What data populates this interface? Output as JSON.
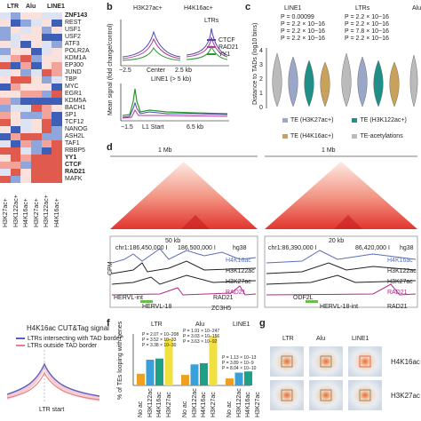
{
  "panel_labels": {
    "b": "b",
    "c": "c",
    "d": "d",
    "f": "f",
    "g": "g"
  },
  "heatmap": {
    "top_labels": [
      "LTR",
      "Alu",
      "LINE1"
    ],
    "genes": [
      "ZNF143",
      "REST",
      "USF1",
      "USF2",
      "ATF3",
      "POLR2A",
      "KDM1A",
      "EP300",
      "JUND",
      "TBP",
      "MYC",
      "EGR1",
      "KDM5A",
      "BACH1",
      "SP1",
      "TCF12",
      "NANOG",
      "ASH2L",
      "TAF1",
      "RBBP5",
      "YY1",
      "CTCF",
      "RAD21",
      "MAFK"
    ],
    "bold_genes": [
      "ZNF143",
      "YY1",
      "CTCF",
      "RAD21"
    ],
    "col_labels": [
      "H3K27ac+",
      "H3K122ac+",
      "H4K16ac+",
      "H3K27ac+",
      "H3K122ac+",
      "H4K16ac+"
    ]
  },
  "panel_b": {
    "title_left": "H3K27ac+",
    "title_right": "H4K16ac+",
    "ltr_label": "LTRs",
    "line1_label": "LINE1 (> 5 kb)",
    "ylabel": "Mean signal (fold change/control)",
    "x_top": [
      "−2.5",
      "Center",
      "2.5 kb"
    ],
    "x_bottom": [
      "−1.5",
      "L1 Start",
      "6.5 kb"
    ],
    "legend": [
      {
        "name": "CTCF",
        "color": "#4f47b5"
      },
      {
        "name": "RAD21",
        "color": "#b23a9a"
      },
      {
        "name": "YY1",
        "color": "#2a9a2a"
      }
    ]
  },
  "panel_c": {
    "groups": [
      "LINE1",
      "LTRs",
      "Alu"
    ],
    "ylabel": "Distance to TADs (log10 bins)",
    "ticks": [
      "0",
      "1",
      "2",
      "3",
      "4"
    ],
    "pvals_line1": [
      "P = 0.00099",
      "P = 2.2 × 10−16",
      "P = 2.2 × 10−16",
      "P = 2.2 × 10−16"
    ],
    "pvals_ltr": [
      "P = 2.2 × 10−16",
      "P = 2.2 × 10−16",
      "P = 7.8 × 10−16",
      "P = 2.2 × 10−16"
    ],
    "stars": "****",
    "legend": [
      {
        "name": "TE (H3K27ac+)",
        "color": "#9aa7c9"
      },
      {
        "name": "TE (H3K122ac+)",
        "color": "#1f8f87"
      },
      {
        "name": "TE (H4K16ac+)",
        "color": "#c9a15a"
      },
      {
        "name": "TE-acetylations",
        "color": "#bbbbbb"
      }
    ],
    "legend_note": "**** < 2.2 × 10"
  },
  "panel_d": {
    "scale_left": "1 Mb",
    "scale_right": "1 Mb",
    "zoom_left": "50 kb",
    "zoom_right": "20 kb",
    "coords_left": [
      "chr1:186,450,000 I",
      "I",
      "186,500,000 I"
    ],
    "coords_right": [
      "chr1:86,390,000 I",
      "86,420,000 I"
    ],
    "genome": "hg38",
    "tracks": [
      "H4K16ac",
      "H3K122ac",
      "H3K27ac",
      "RAD21"
    ],
    "track_colors": [
      "#5b6fb5",
      "#222222",
      "#222222",
      "#b1278d"
    ],
    "cpm": "CPM",
    "genes_left": [
      "HERVL-int",
      "HERVL-18",
      "RAD21",
      "ZC3H5"
    ],
    "genes_right": [
      "HERVL-18-int",
      "ODF2L",
      "RAD21"
    ]
  },
  "panel_e": {
    "title": "H4K16ac CUT&Tag signal",
    "legend": [
      {
        "name": "LTRs intersecting with TAD border",
        "color": "#5560c8"
      },
      {
        "name": "LTRs outside TAD border",
        "color": "#e6808a"
      }
    ],
    "xlabel": "LTR start"
  },
  "panel_f": {
    "groups": [
      "LTR",
      "Alu",
      "LINE1"
    ],
    "ylabel": "% of TEs looping with genes",
    "yticks": [
      "0",
      "5",
      "10",
      "15",
      "20"
    ],
    "bars": [
      {
        "group": "LTR",
        "label": "No ac",
        "value": 5,
        "color": "#f0a020"
      },
      {
        "group": "LTR",
        "label": "H3K122ac",
        "value": 11,
        "color": "#3aa0d8"
      },
      {
        "group": "LTR",
        "label": "H4K16ac",
        "value": 11.5,
        "color": "#1f9f86"
      },
      {
        "group": "LTR",
        "label": "H3K27ac",
        "value": 20,
        "color": "#f0e040"
      },
      {
        "group": "Alu",
        "label": "No ac",
        "value": 4.5,
        "color": "#f0a020"
      },
      {
        "group": "Alu",
        "label": "H3K122ac",
        "value": 9,
        "color": "#3aa0d8"
      },
      {
        "group": "Alu",
        "label": "H4K16ac",
        "value": 9.5,
        "color": "#1f9f86"
      },
      {
        "group": "Alu",
        "label": "H3K27ac",
        "value": 21,
        "color": "#f0e040"
      },
      {
        "group": "LINE1",
        "label": "No ac",
        "value": 3,
        "color": "#f0a020"
      },
      {
        "group": "LINE1",
        "label": "H3K122ac",
        "value": 5.5,
        "color": "#3aa0d8"
      },
      {
        "group": "LINE1",
        "label": "H4K16ac",
        "value": 6,
        "color": "#1f9f86"
      },
      {
        "group": "LINE1",
        "label": "H3K27ac",
        "value": 11,
        "color": "#f0e040"
      }
    ],
    "pvals_ltr": [
      "P = 2.07 × 10−208",
      "P = 3.52 × 10−33",
      "P = 3.38 × 10−30"
    ],
    "pvals_alu": [
      "P = 1.91 × 10−247",
      "P = 3.03 × 10−156",
      "P = 3.63 × 10−92"
    ],
    "pvals_line1": [
      "P = 1.13 × 10−13",
      "P = 3.89 × 10−9",
      "P = 8.04 × 10−10"
    ],
    "stars": "***"
  },
  "panel_g": {
    "cols": [
      "LTR",
      "Alu",
      "LINE1"
    ],
    "rows": [
      "H4K16ac",
      "H3K27ac"
    ]
  }
}
